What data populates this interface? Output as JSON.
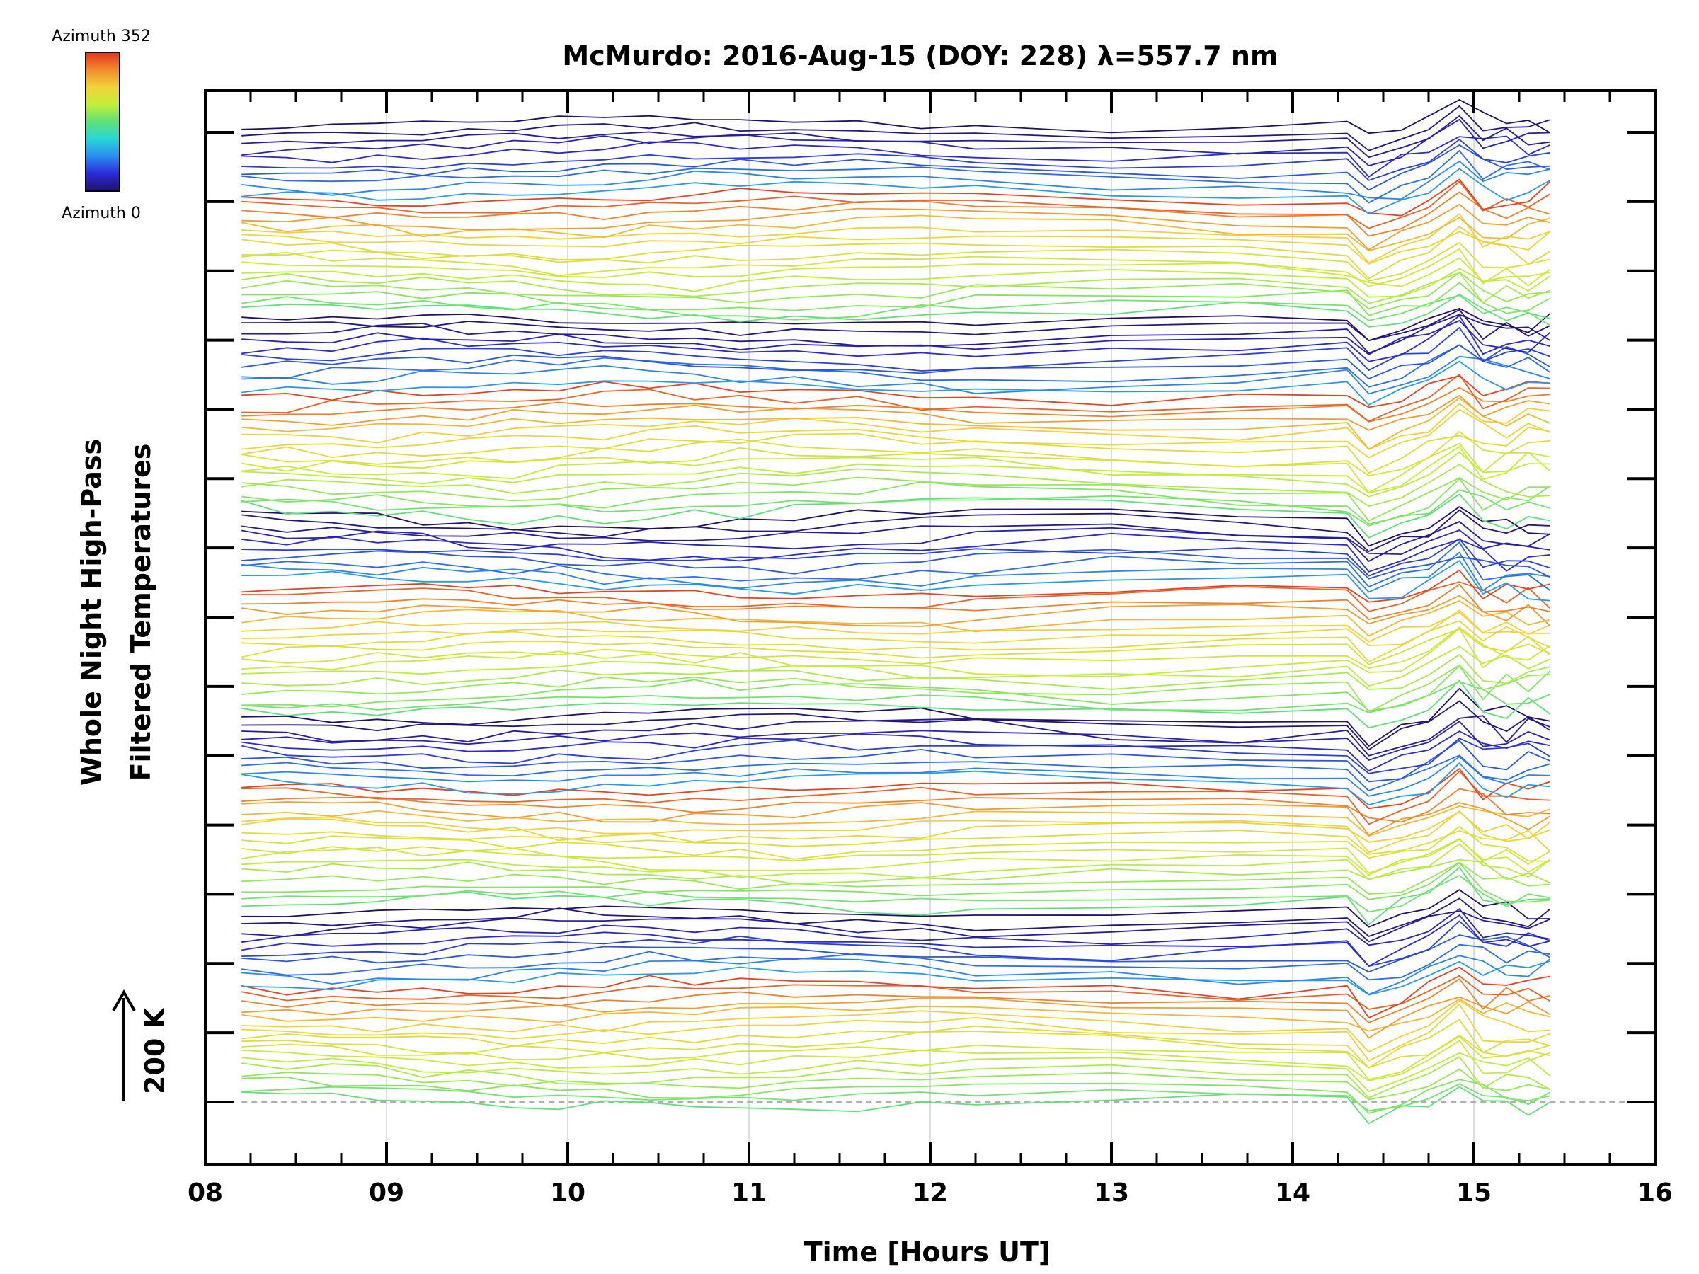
{
  "chart_data": {
    "type": "line",
    "title": "McMurdo: 2016-Aug-15 (DOY: 228) λ=557.7 nm",
    "xlabel": "Time [Hours UT]",
    "ylabel_line1": "Whole Night High-Pass",
    "ylabel_line2": "Filtered Temperatures",
    "xlim": [
      8,
      16
    ],
    "x_ticks": [
      "08",
      "09",
      "10",
      "11",
      "12",
      "13",
      "14",
      "15",
      "16"
    ],
    "y_ticks_count": 15,
    "scale_bar_label": "200 K",
    "colorbar": {
      "top_label": "Azimuth 352",
      "bottom_label": "Azimuth 0",
      "min": 0,
      "max": 352,
      "colormap": [
        "#20106a",
        "#2a2ad8",
        "#2a8cf0",
        "#27d6d6",
        "#5fe07a",
        "#c4ee3a",
        "#f3d23a",
        "#f28a2c",
        "#e3341e"
      ]
    },
    "series_count": 135,
    "series_description": "Stacked traces, one per azimuth, offset vertically",
    "time_samples": [
      8.2,
      8.45,
      8.7,
      8.95,
      9.2,
      9.45,
      9.7,
      9.95,
      10.2,
      10.45,
      10.7,
      10.95,
      11.25,
      11.6,
      11.95,
      12.25,
      13.0,
      13.7,
      14.3,
      14.42,
      14.6,
      14.75,
      14.92,
      15.05,
      15.18,
      15.3,
      15.42
    ],
    "baseline_label": "dashed zero line at lowest trace"
  }
}
